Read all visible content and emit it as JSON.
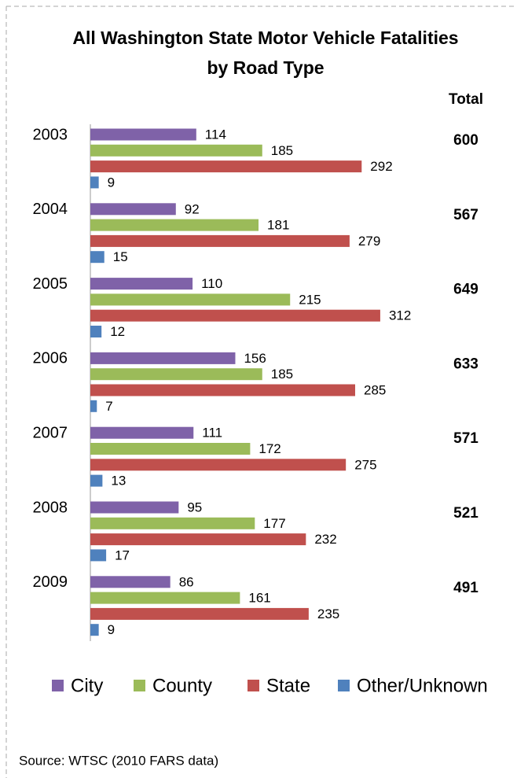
{
  "chart_data": {
    "type": "hbar",
    "title": "All Washington State Motor Vehicle Fatalities",
    "subtitle": "by Road Type",
    "categories": [
      "2003",
      "2004",
      "2005",
      "2006",
      "2007",
      "2008",
      "2009"
    ],
    "series": [
      {
        "name": "City",
        "color": "#7f62a8",
        "values": [
          114,
          92,
          110,
          156,
          111,
          95,
          86
        ]
      },
      {
        "name": "County",
        "color": "#9bbb59",
        "values": [
          185,
          181,
          215,
          185,
          172,
          177,
          161
        ]
      },
      {
        "name": "State",
        "color": "#c0504d",
        "values": [
          292,
          279,
          312,
          285,
          275,
          232,
          235
        ]
      },
      {
        "name": "Other/Unknown",
        "color": "#4f81bd",
        "values": [
          9,
          15,
          12,
          7,
          13,
          17,
          9
        ]
      }
    ],
    "totals_label": "Total",
    "totals": [
      600,
      567,
      649,
      633,
      571,
      521,
      491
    ],
    "xlim": [
      0,
      400
    ],
    "legend": "bottom",
    "source": "Source:  WTSC (2010 FARS data)"
  }
}
